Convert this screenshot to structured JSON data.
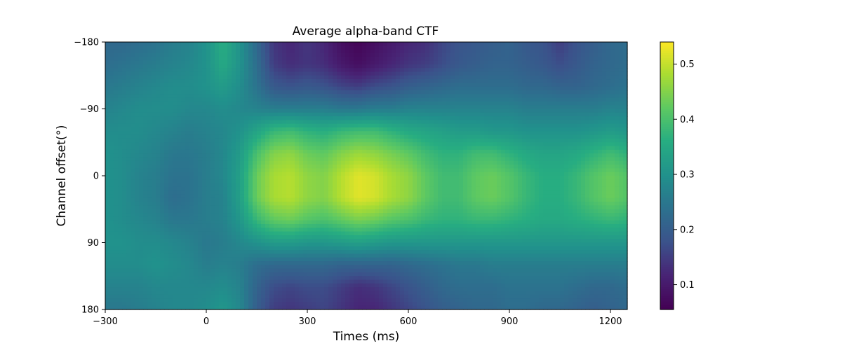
{
  "chart_data": {
    "type": "heatmap",
    "title": "Average alpha-band CTF",
    "xlabel": "Times (ms)",
    "ylabel": "Channel offset(°)",
    "xlim": [
      -300,
      1250
    ],
    "ylim": [
      -180,
      180
    ],
    "y_inverted": true,
    "x_ticks": [
      -300,
      0,
      300,
      600,
      900,
      1200
    ],
    "x_tick_labels": [
      "−300",
      "0",
      "300",
      "600",
      "900",
      "1200"
    ],
    "y_ticks": [
      -180,
      -90,
      0,
      90,
      180
    ],
    "y_tick_labels": [
      "−180",
      "−90",
      "0",
      "90",
      "180"
    ],
    "colormap": "viridis",
    "colorbar": {
      "range": [
        0.055,
        0.54
      ],
      "ticks": [
        0.1,
        0.2,
        0.3,
        0.4,
        0.5
      ],
      "tick_labels": [
        "0.1",
        "0.2",
        "0.3",
        "0.4",
        "0.5"
      ]
    },
    "x": [
      -300,
      -250,
      -200,
      -150,
      -100,
      -50,
      0,
      50,
      100,
      150,
      200,
      250,
      300,
      350,
      400,
      450,
      500,
      550,
      600,
      650,
      700,
      750,
      800,
      850,
      900,
      950,
      1000,
      1050,
      1100,
      1150,
      1200,
      1250
    ],
    "y": [
      -180,
      -150,
      -120,
      -90,
      -60,
      -30,
      0,
      30,
      60,
      90,
      120,
      150,
      180
    ],
    "z": [
      [
        0.22,
        0.22,
        0.23,
        0.24,
        0.26,
        0.27,
        0.3,
        0.36,
        0.3,
        0.22,
        0.14,
        0.12,
        0.14,
        0.12,
        0.08,
        0.06,
        0.08,
        0.1,
        0.12,
        0.13,
        0.16,
        0.18,
        0.19,
        0.2,
        0.21,
        0.19,
        0.18,
        0.15,
        0.18,
        0.2,
        0.22,
        0.23
      ],
      [
        0.23,
        0.24,
        0.25,
        0.26,
        0.27,
        0.28,
        0.3,
        0.35,
        0.3,
        0.23,
        0.15,
        0.13,
        0.14,
        0.13,
        0.1,
        0.08,
        0.1,
        0.12,
        0.14,
        0.15,
        0.17,
        0.19,
        0.2,
        0.21,
        0.21,
        0.2,
        0.19,
        0.17,
        0.19,
        0.21,
        0.22,
        0.23
      ],
      [
        0.25,
        0.26,
        0.27,
        0.28,
        0.29,
        0.29,
        0.3,
        0.32,
        0.29,
        0.24,
        0.19,
        0.18,
        0.19,
        0.18,
        0.16,
        0.15,
        0.17,
        0.18,
        0.2,
        0.21,
        0.22,
        0.23,
        0.23,
        0.23,
        0.23,
        0.22,
        0.22,
        0.21,
        0.21,
        0.22,
        0.23,
        0.24
      ],
      [
        0.27,
        0.28,
        0.29,
        0.29,
        0.29,
        0.28,
        0.28,
        0.29,
        0.28,
        0.27,
        0.26,
        0.26,
        0.26,
        0.26,
        0.25,
        0.25,
        0.26,
        0.26,
        0.27,
        0.27,
        0.27,
        0.27,
        0.27,
        0.27,
        0.27,
        0.26,
        0.26,
        0.26,
        0.26,
        0.26,
        0.27,
        0.27
      ],
      [
        0.29,
        0.29,
        0.29,
        0.28,
        0.27,
        0.26,
        0.27,
        0.28,
        0.3,
        0.34,
        0.38,
        0.39,
        0.37,
        0.36,
        0.38,
        0.39,
        0.39,
        0.37,
        0.35,
        0.34,
        0.33,
        0.32,
        0.32,
        0.31,
        0.31,
        0.3,
        0.3,
        0.3,
        0.3,
        0.31,
        0.32,
        0.31
      ],
      [
        0.3,
        0.29,
        0.28,
        0.27,
        0.25,
        0.25,
        0.26,
        0.28,
        0.32,
        0.4,
        0.45,
        0.46,
        0.43,
        0.42,
        0.45,
        0.47,
        0.46,
        0.44,
        0.42,
        0.39,
        0.37,
        0.37,
        0.39,
        0.39,
        0.37,
        0.35,
        0.34,
        0.34,
        0.35,
        0.37,
        0.39,
        0.37
      ],
      [
        0.3,
        0.29,
        0.27,
        0.26,
        0.24,
        0.24,
        0.26,
        0.28,
        0.33,
        0.43,
        0.48,
        0.49,
        0.46,
        0.45,
        0.49,
        0.52,
        0.51,
        0.48,
        0.46,
        0.42,
        0.39,
        0.39,
        0.42,
        0.43,
        0.41,
        0.38,
        0.36,
        0.36,
        0.38,
        0.41,
        0.43,
        0.41
      ],
      [
        0.3,
        0.29,
        0.27,
        0.26,
        0.23,
        0.24,
        0.26,
        0.27,
        0.33,
        0.43,
        0.48,
        0.49,
        0.46,
        0.45,
        0.49,
        0.52,
        0.51,
        0.48,
        0.46,
        0.42,
        0.39,
        0.39,
        0.42,
        0.43,
        0.41,
        0.38,
        0.36,
        0.36,
        0.38,
        0.41,
        0.43,
        0.41
      ],
      [
        0.3,
        0.29,
        0.28,
        0.27,
        0.25,
        0.25,
        0.26,
        0.27,
        0.31,
        0.38,
        0.42,
        0.43,
        0.41,
        0.4,
        0.42,
        0.44,
        0.43,
        0.41,
        0.4,
        0.38,
        0.37,
        0.37,
        0.38,
        0.38,
        0.37,
        0.36,
        0.35,
        0.35,
        0.36,
        0.37,
        0.38,
        0.37
      ],
      [
        0.3,
        0.3,
        0.29,
        0.29,
        0.28,
        0.27,
        0.25,
        0.26,
        0.28,
        0.3,
        0.32,
        0.32,
        0.31,
        0.31,
        0.32,
        0.33,
        0.32,
        0.31,
        0.31,
        0.31,
        0.31,
        0.31,
        0.31,
        0.31,
        0.31,
        0.31,
        0.31,
        0.31,
        0.31,
        0.31,
        0.31,
        0.31
      ],
      [
        0.29,
        0.29,
        0.29,
        0.3,
        0.29,
        0.28,
        0.26,
        0.27,
        0.26,
        0.23,
        0.22,
        0.22,
        0.22,
        0.22,
        0.21,
        0.21,
        0.21,
        0.21,
        0.22,
        0.23,
        0.24,
        0.25,
        0.25,
        0.26,
        0.26,
        0.26,
        0.26,
        0.26,
        0.26,
        0.26,
        0.26,
        0.26
      ],
      [
        0.27,
        0.27,
        0.27,
        0.28,
        0.28,
        0.28,
        0.28,
        0.29,
        0.27,
        0.21,
        0.17,
        0.16,
        0.17,
        0.17,
        0.15,
        0.13,
        0.14,
        0.16,
        0.18,
        0.2,
        0.22,
        0.23,
        0.23,
        0.23,
        0.24,
        0.24,
        0.24,
        0.24,
        0.23,
        0.22,
        0.22,
        0.23
      ],
      [
        0.25,
        0.25,
        0.26,
        0.27,
        0.28,
        0.28,
        0.29,
        0.31,
        0.28,
        0.2,
        0.15,
        0.14,
        0.15,
        0.16,
        0.14,
        0.12,
        0.12,
        0.14,
        0.16,
        0.18,
        0.2,
        0.21,
        0.22,
        0.22,
        0.23,
        0.23,
        0.22,
        0.22,
        0.21,
        0.2,
        0.21,
        0.22
      ]
    ]
  }
}
